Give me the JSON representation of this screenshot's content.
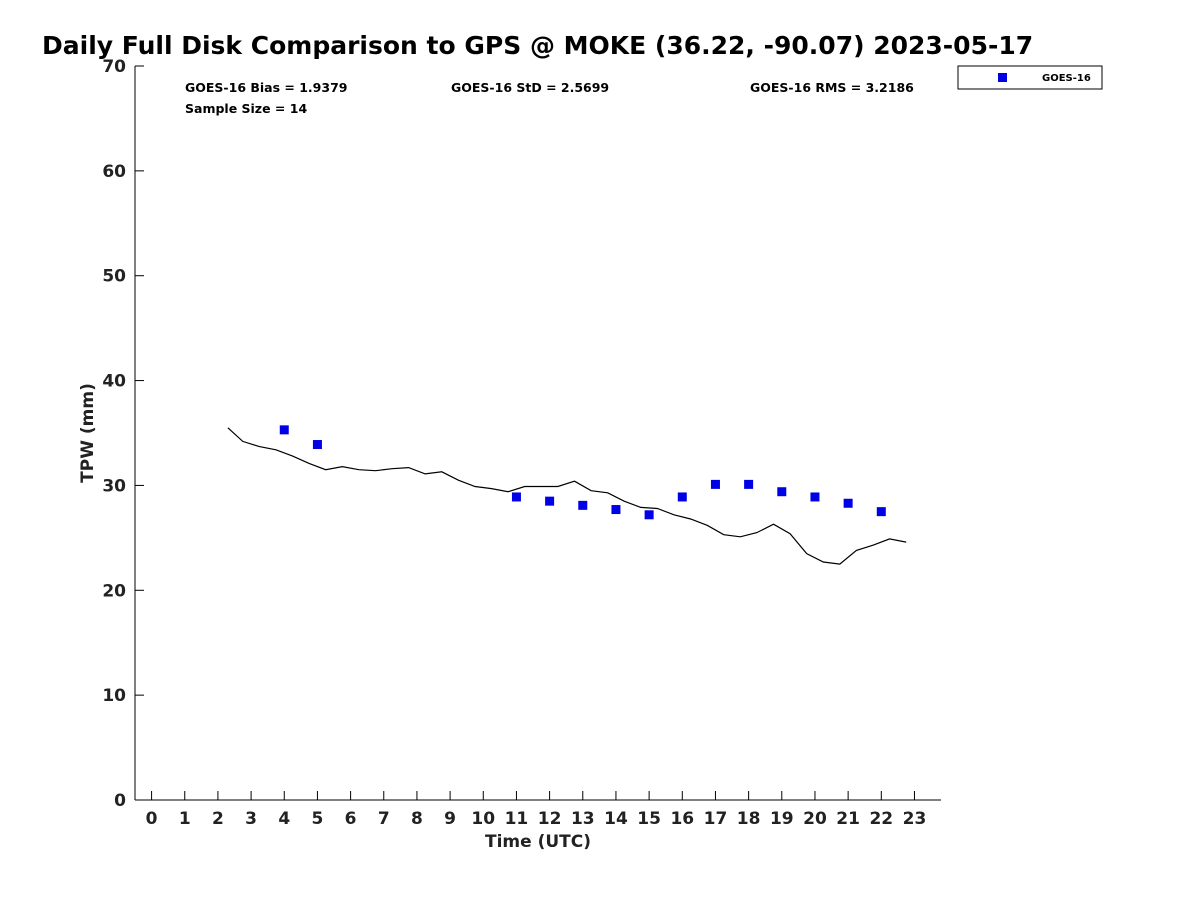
{
  "chart_data": {
    "type": "scatter",
    "title": "Daily Full Disk Comparison to GPS @ MOKE (36.22, -90.07) 2023-05-17",
    "xlabel": "Time (UTC)",
    "ylabel": "TPW (mm)",
    "xlim": [
      -0.5,
      23.8
    ],
    "ylim": [
      0,
      70
    ],
    "xticks": [
      0,
      1,
      2,
      3,
      4,
      5,
      6,
      7,
      8,
      9,
      10,
      11,
      12,
      13,
      14,
      15,
      16,
      17,
      18,
      19,
      20,
      21,
      22,
      23
    ],
    "yticks": [
      0,
      10,
      20,
      30,
      40,
      50,
      60,
      70
    ],
    "grid": false,
    "legend_position": "top-right",
    "stats": {
      "bias": "GOES-16 Bias = 1.9379",
      "std": "GOES-16 StD = 2.5699",
      "rms": "GOES-16 RMS = 3.2186",
      "sample": "Sample Size = 14"
    },
    "series": [
      {
        "name": "GOES-16",
        "kind": "scatter",
        "marker": "square",
        "color": "#0000e6",
        "x": [
          4,
          5,
          11,
          12,
          13,
          14,
          15,
          16,
          17,
          18,
          19,
          20,
          21,
          22
        ],
        "y": [
          35.3,
          33.9,
          28.9,
          28.5,
          28.1,
          27.7,
          27.2,
          28.9,
          30.1,
          30.1,
          29.4,
          28.9,
          28.3,
          27.5
        ]
      },
      {
        "kind": "line",
        "color": "#000000",
        "x": [
          2.3,
          2.75,
          3.25,
          3.75,
          4.25,
          4.75,
          5.25,
          5.75,
          6.25,
          6.75,
          7.25,
          7.75,
          8.25,
          8.75,
          9.25,
          9.75,
          10.25,
          10.75,
          11.25,
          11.75,
          12.25,
          12.75,
          13.25,
          13.75,
          14.25,
          14.75,
          15.25,
          15.75,
          16.25,
          16.75,
          17.25,
          17.75,
          18.25,
          18.75,
          19.25,
          19.75,
          20.25,
          20.75,
          21.25,
          21.75,
          22.25,
          22.75
        ],
        "y": [
          35.5,
          34.2,
          33.7,
          33.4,
          32.8,
          32.1,
          31.5,
          31.8,
          31.5,
          31.4,
          31.6,
          31.7,
          31.1,
          31.3,
          30.5,
          29.9,
          29.7,
          29.4,
          29.9,
          29.9,
          29.9,
          30.4,
          29.5,
          29.3,
          28.5,
          27.9,
          27.8,
          27.2,
          26.8,
          26.2,
          25.3,
          25.1,
          25.5,
          26.3,
          25.4,
          23.5,
          22.7,
          22.5,
          23.8,
          24.3,
          24.9,
          24.6
        ]
      }
    ]
  }
}
